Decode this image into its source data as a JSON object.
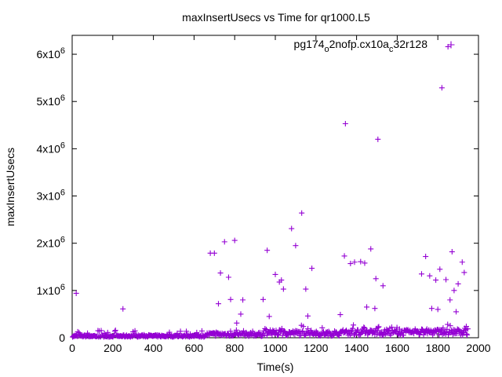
{
  "chart_data": {
    "type": "scatter",
    "title": "maxInsertUsecs vs Time for qr1000.L5",
    "xlabel": "Time(s)",
    "ylabel": "maxInsertUsecs",
    "xlim": [
      0,
      2000
    ],
    "ylim": [
      0,
      6400000
    ],
    "x_ticks": [
      {
        "value": 0,
        "label": "0"
      },
      {
        "value": 200,
        "label": "200"
      },
      {
        "value": 400,
        "label": "400"
      },
      {
        "value": 600,
        "label": "600"
      },
      {
        "value": 800,
        "label": "800"
      },
      {
        "value": 1000,
        "label": "1000"
      },
      {
        "value": 1200,
        "label": "1200"
      },
      {
        "value": 1400,
        "label": "1400"
      },
      {
        "value": 1600,
        "label": "1600"
      },
      {
        "value": 1800,
        "label": "1800"
      },
      {
        "value": 2000,
        "label": "2000"
      }
    ],
    "y_ticks": [
      {
        "value": 0,
        "base": "0",
        "exp": ""
      },
      {
        "value": 1000000,
        "base": "1x10",
        "exp": "6"
      },
      {
        "value": 2000000,
        "base": "2x10",
        "exp": "6"
      },
      {
        "value": 3000000,
        "base": "3x10",
        "exp": "6"
      },
      {
        "value": 4000000,
        "base": "4x10",
        "exp": "6"
      },
      {
        "value": 5000000,
        "base": "5x10",
        "exp": "6"
      },
      {
        "value": 6000000,
        "base": "6x10",
        "exp": "6"
      }
    ],
    "grid": false,
    "legend_position": "top-right",
    "series": [
      {
        "name_parts": [
          {
            "text": "pg174",
            "sub": false
          },
          {
            "text": "o",
            "sub": true
          },
          {
            "text": "2nofp.cx10a",
            "sub": false
          },
          {
            "text": "c",
            "sub": true
          },
          {
            "text": "32r128",
            "sub": false
          }
        ],
        "color": "#9400d3",
        "marker": "plus",
        "outliers": [
          [
            20,
            940000
          ],
          [
            250,
            610000
          ],
          [
            680,
            1790000
          ],
          [
            700,
            1790000
          ],
          [
            720,
            720000
          ],
          [
            730,
            1370000
          ],
          [
            750,
            2030000
          ],
          [
            770,
            1280000
          ],
          [
            780,
            810000
          ],
          [
            800,
            2060000
          ],
          [
            810,
            310000
          ],
          [
            830,
            500000
          ],
          [
            840,
            800000
          ],
          [
            940,
            810000
          ],
          [
            960,
            1850000
          ],
          [
            970,
            450000
          ],
          [
            1000,
            1340000
          ],
          [
            1020,
            1180000
          ],
          [
            1030,
            1220000
          ],
          [
            1040,
            1030000
          ],
          [
            1080,
            2310000
          ],
          [
            1100,
            1950000
          ],
          [
            1130,
            2640000
          ],
          [
            1150,
            1030000
          ],
          [
            1160,
            460000
          ],
          [
            1180,
            1470000
          ],
          [
            1320,
            490000
          ],
          [
            1340,
            1730000
          ],
          [
            1345,
            4530000
          ],
          [
            1370,
            1570000
          ],
          [
            1390,
            1600000
          ],
          [
            1420,
            1610000
          ],
          [
            1440,
            1580000
          ],
          [
            1450,
            650000
          ],
          [
            1470,
            1880000
          ],
          [
            1490,
            620000
          ],
          [
            1495,
            1250000
          ],
          [
            1505,
            4200000
          ],
          [
            1530,
            1100000
          ],
          [
            1720,
            1350000
          ],
          [
            1740,
            1720000
          ],
          [
            1760,
            1310000
          ],
          [
            1770,
            620000
          ],
          [
            1790,
            1220000
          ],
          [
            1800,
            600000
          ],
          [
            1810,
            1450000
          ],
          [
            1820,
            5290000
          ],
          [
            1840,
            1230000
          ],
          [
            1850,
            6160000
          ],
          [
            1860,
            800000
          ],
          [
            1870,
            1820000
          ],
          [
            1880,
            1000000
          ],
          [
            1890,
            550000
          ],
          [
            1900,
            1140000
          ],
          [
            1920,
            1600000
          ],
          [
            1930,
            1380000
          ],
          [
            1940,
            240000
          ]
        ]
      }
    ]
  }
}
